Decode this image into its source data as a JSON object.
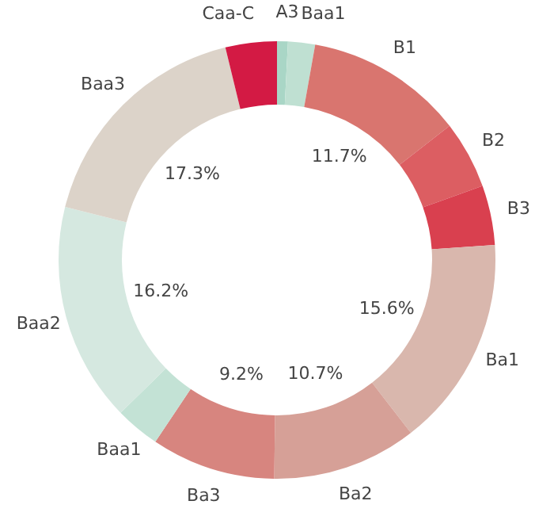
{
  "chart_data": {
    "type": "donut",
    "categories": [
      "A3",
      "Baa1",
      "B1",
      "B2",
      "B3",
      "Ba1",
      "Ba2",
      "Ba3",
      "Baa1",
      "Baa2",
      "Baa3",
      "Caa-C"
    ],
    "values": [
      0.8,
      2.0,
      11.7,
      5.0,
      4.4,
      15.6,
      10.7,
      9.2,
      3.3,
      16.2,
      17.3,
      3.8
    ],
    "colors": [
      "#a9d6c6",
      "#bfe0d2",
      "#d9756f",
      "#dc5e62",
      "#d9404f",
      "#d9b7ad",
      "#d6a097",
      "#d7857f",
      "#c3e2d5",
      "#d5e8e0",
      "#dcd3c9",
      "#d31a44"
    ],
    "value_labels": [
      null,
      null,
      "11.7%",
      null,
      null,
      "15.6%",
      "10.7%",
      "9.2%",
      null,
      "16.2%",
      "17.3%",
      null
    ]
  }
}
